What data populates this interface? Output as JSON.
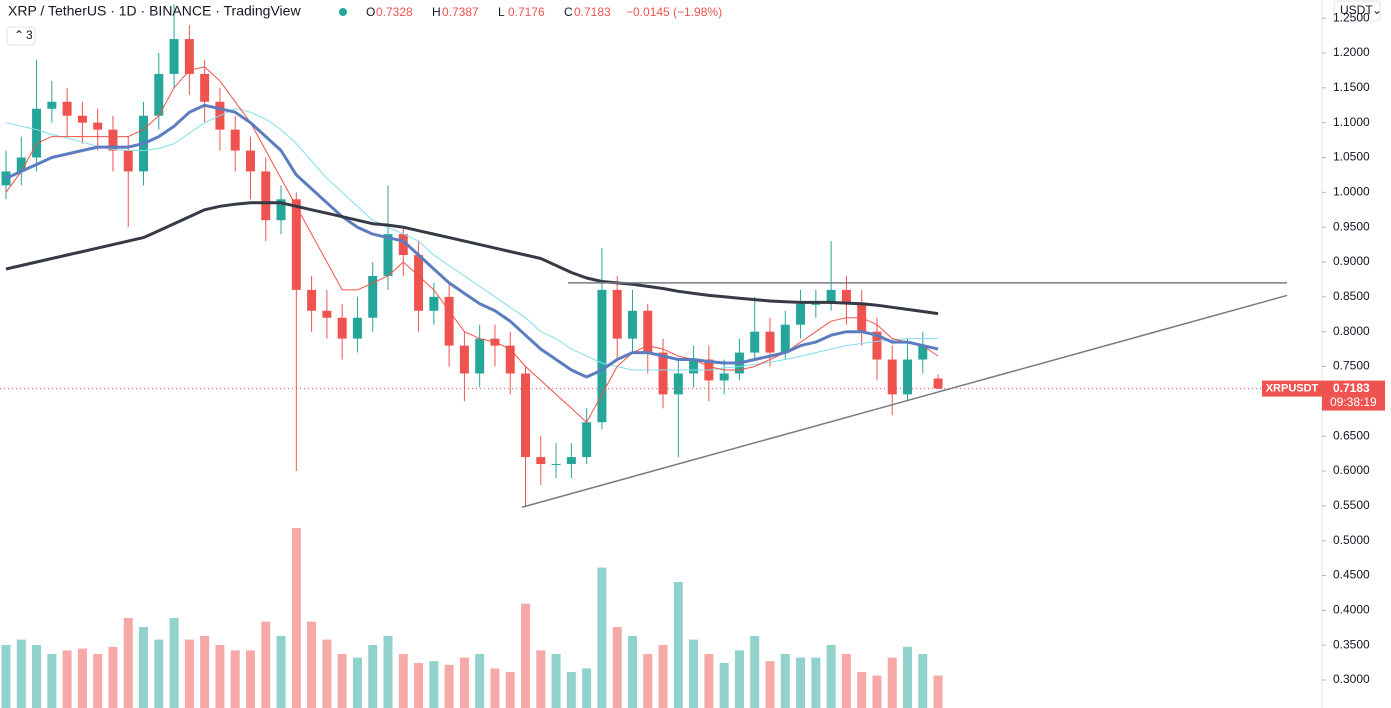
{
  "header": {
    "symbol": "XRP / TetherUS · 1D · BINANCE · TradingView",
    "legend": [
      {
        "label": "O",
        "value": "0.7328"
      },
      {
        "label": "H",
        "value": "0.7387"
      },
      {
        "label": "L",
        "value": "0.7176"
      },
      {
        "label": "C",
        "value": "0.7183"
      }
    ],
    "change": "−0.0145 (−1.98%)",
    "indicators": "3",
    "currency": "USDT"
  },
  "chart_data": {
    "type": "candlestick",
    "ylim": [
      0.2598,
      1.2761
    ],
    "yticks": [
      {
        "value": 0.3,
        "label": "0.3000"
      },
      {
        "value": 0.35,
        "label": "0.3500"
      },
      {
        "value": 0.4,
        "label": "0.4000"
      },
      {
        "value": 0.45,
        "label": "0.4500"
      },
      {
        "value": 0.5,
        "label": "0.5000"
      },
      {
        "value": 0.55,
        "label": "0.5500"
      },
      {
        "value": 0.6,
        "label": "0.6000"
      },
      {
        "value": 0.65,
        "label": "0.6500"
      },
      {
        "value": 0.7,
        "label": "0.7000"
      },
      {
        "value": 0.75,
        "label": "0.7500"
      },
      {
        "value": 0.8,
        "label": "0.8000"
      },
      {
        "value": 0.85,
        "label": "0.8500"
      },
      {
        "value": 0.9,
        "label": "0.9000"
      },
      {
        "value": 0.95,
        "label": "0.9500"
      },
      {
        "value": 1.0,
        "label": "1.0000"
      },
      {
        "value": 1.05,
        "label": "1.0500"
      },
      {
        "value": 1.1,
        "label": "1.1000"
      },
      {
        "value": 1.15,
        "label": "1.1500"
      },
      {
        "value": 1.2,
        "label": "1.2000"
      },
      {
        "value": 1.25,
        "label": "1.2500"
      }
    ],
    "grid": false,
    "up_color": "#26a69a",
    "down_color": "#ef5350",
    "open": [
      1.01,
      1.03,
      1.05,
      1.12,
      1.13,
      1.11,
      1.1,
      1.09,
      1.06,
      1.03,
      1.11,
      1.17,
      1.22,
      1.17,
      1.13,
      1.09,
      1.06,
      1.03,
      0.96,
      0.99,
      0.86,
      0.83,
      0.82,
      0.79,
      0.82,
      0.88,
      0.94,
      0.91,
      0.83,
      0.85,
      0.78,
      0.74,
      0.79,
      0.78,
      0.74,
      0.62,
      0.61,
      0.61,
      0.62,
      0.67,
      0.86,
      0.79,
      0.83,
      0.77,
      0.71,
      0.74,
      0.76,
      0.73,
      0.74,
      0.77,
      0.8,
      0.77,
      0.81,
      0.84,
      0.84,
      0.86,
      0.84,
      0.8,
      0.76,
      0.71,
      0.76,
      0.7328
    ],
    "high": [
      1.06,
      1.08,
      1.19,
      1.16,
      1.15,
      1.13,
      1.12,
      1.11,
      1.08,
      1.13,
      1.2,
      1.27,
      1.24,
      1.19,
      1.15,
      1.11,
      1.08,
      1.05,
      1.01,
      1.0,
      0.88,
      0.86,
      0.84,
      0.85,
      0.9,
      1.01,
      0.95,
      0.93,
      0.87,
      0.87,
      0.8,
      0.81,
      0.81,
      0.8,
      0.75,
      0.65,
      0.64,
      0.64,
      0.69,
      0.92,
      0.88,
      0.86,
      0.84,
      0.79,
      0.76,
      0.78,
      0.78,
      0.76,
      0.79,
      0.85,
      0.82,
      0.83,
      0.86,
      0.86,
      0.93,
      0.88,
      0.86,
      0.82,
      0.78,
      0.79,
      0.8,
      0.7387
    ],
    "low": [
      0.99,
      1.01,
      1.03,
      1.1,
      1.08,
      1.07,
      1.06,
      1.03,
      0.95,
      1.01,
      1.09,
      1.15,
      1.14,
      1.1,
      1.06,
      1.03,
      0.99,
      0.93,
      0.94,
      0.6,
      0.8,
      0.79,
      0.76,
      0.77,
      0.8,
      0.86,
      0.88,
      0.8,
      0.81,
      0.75,
      0.7,
      0.72,
      0.75,
      0.71,
      0.55,
      0.58,
      0.59,
      0.59,
      0.61,
      0.66,
      0.76,
      0.77,
      0.74,
      0.69,
      0.62,
      0.72,
      0.7,
      0.71,
      0.73,
      0.76,
      0.75,
      0.76,
      0.79,
      0.82,
      0.83,
      0.81,
      0.78,
      0.73,
      0.68,
      0.7,
      0.74,
      0.7176
    ],
    "close": [
      1.03,
      1.05,
      1.12,
      1.13,
      1.11,
      1.1,
      1.09,
      1.06,
      1.03,
      1.11,
      1.17,
      1.22,
      1.17,
      1.13,
      1.09,
      1.06,
      1.03,
      0.96,
      0.99,
      0.86,
      0.83,
      0.82,
      0.79,
      0.82,
      0.88,
      0.94,
      0.91,
      0.83,
      0.85,
      0.78,
      0.74,
      0.79,
      0.78,
      0.74,
      0.62,
      0.61,
      0.61,
      0.62,
      0.67,
      0.86,
      0.79,
      0.83,
      0.77,
      0.71,
      0.74,
      0.76,
      0.73,
      0.74,
      0.77,
      0.8,
      0.77,
      0.81,
      0.84,
      0.84,
      0.86,
      0.84,
      0.8,
      0.76,
      0.71,
      0.76,
      0.78,
      0.7183
    ],
    "volume": [
      35,
      38,
      35,
      30,
      32,
      33,
      30,
      34,
      50,
      45,
      38,
      50,
      38,
      40,
      35,
      32,
      32,
      48,
      40,
      100,
      48,
      38,
      30,
      28,
      35,
      40,
      30,
      25,
      26,
      24,
      28,
      30,
      22,
      20,
      58,
      32,
      30,
      20,
      22,
      78,
      45,
      40,
      30,
      35,
      70,
      38,
      30,
      25,
      32,
      40,
      26,
      30,
      28,
      28,
      35,
      30,
      20,
      18,
      28,
      34,
      30,
      18
    ],
    "series": [
      {
        "color": "#80deea",
        "width": 1,
        "values": [
          1.1,
          1.095,
          1.09,
          1.083,
          1.078,
          1.072,
          1.066,
          1.062,
          1.06,
          1.06,
          1.063,
          1.07,
          1.085,
          1.1,
          1.11,
          1.12,
          1.115,
          1.105,
          1.09,
          1.07,
          1.045,
          1.02,
          1.0,
          0.98,
          0.96,
          0.95,
          0.94,
          0.93,
          0.91,
          0.895,
          0.88,
          0.865,
          0.85,
          0.835,
          0.82,
          0.8,
          0.79,
          0.775,
          0.765,
          0.755,
          0.75,
          0.745,
          0.745,
          0.745,
          0.745,
          0.745,
          0.745,
          0.748,
          0.75,
          0.753,
          0.756,
          0.76,
          0.765,
          0.77,
          0.775,
          0.78,
          0.783,
          0.786,
          0.788,
          0.79,
          0.79,
          0.79
        ]
      },
      {
        "color": "#f0524a",
        "width": 1,
        "values": [
          1.0,
          1.03,
          1.07,
          1.08,
          1.08,
          1.08,
          1.08,
          1.08,
          1.08,
          1.09,
          1.11,
          1.15,
          1.175,
          1.18,
          1.16,
          1.13,
          1.1,
          1.06,
          1.02,
          0.98,
          0.94,
          0.9,
          0.86,
          0.86,
          0.87,
          0.88,
          0.9,
          0.88,
          0.86,
          0.83,
          0.8,
          0.79,
          0.785,
          0.775,
          0.75,
          0.73,
          0.71,
          0.69,
          0.67,
          0.71,
          0.75,
          0.77,
          0.78,
          0.775,
          0.765,
          0.76,
          0.75,
          0.745,
          0.745,
          0.75,
          0.76,
          0.77,
          0.785,
          0.8,
          0.815,
          0.82,
          0.82,
          0.81,
          0.79,
          0.785,
          0.78,
          0.765
        ]
      },
      {
        "color": "#5b7dc0",
        "width": 3,
        "values": [
          1.02,
          1.03,
          1.04,
          1.05,
          1.055,
          1.06,
          1.065,
          1.065,
          1.065,
          1.07,
          1.08,
          1.095,
          1.115,
          1.125,
          1.12,
          1.115,
          1.1,
          1.08,
          1.06,
          1.025,
          1.005,
          0.985,
          0.965,
          0.95,
          0.94,
          0.935,
          0.93,
          0.91,
          0.89,
          0.87,
          0.855,
          0.84,
          0.83,
          0.815,
          0.795,
          0.775,
          0.76,
          0.745,
          0.735,
          0.745,
          0.76,
          0.77,
          0.77,
          0.765,
          0.76,
          0.76,
          0.757,
          0.755,
          0.755,
          0.76,
          0.765,
          0.77,
          0.78,
          0.785,
          0.795,
          0.8,
          0.8,
          0.795,
          0.785,
          0.785,
          0.78,
          0.775
        ]
      },
      {
        "color": "#363a45",
        "width": 3,
        "values": [
          0.89,
          0.895,
          0.9,
          0.905,
          0.91,
          0.915,
          0.92,
          0.925,
          0.93,
          0.935,
          0.945,
          0.955,
          0.965,
          0.975,
          0.98,
          0.983,
          0.985,
          0.985,
          0.985,
          0.98,
          0.975,
          0.97,
          0.965,
          0.96,
          0.955,
          0.953,
          0.95,
          0.945,
          0.94,
          0.935,
          0.93,
          0.925,
          0.92,
          0.915,
          0.91,
          0.905,
          0.895,
          0.885,
          0.877,
          0.872,
          0.87,
          0.868,
          0.865,
          0.862,
          0.858,
          0.855,
          0.852,
          0.85,
          0.848,
          0.846,
          0.844,
          0.843,
          0.842,
          0.842,
          0.842,
          0.841,
          0.84,
          0.838,
          0.835,
          0.832,
          0.829,
          0.826
        ]
      }
    ],
    "resistance": 0.87,
    "support": [
      0.548,
      0.852
    ],
    "line_color": "#787b86",
    "last_price": {
      "symbol": "XRPUSDT",
      "value": "0.7183",
      "price": 0.7183,
      "countdown": "09:38:19"
    }
  }
}
